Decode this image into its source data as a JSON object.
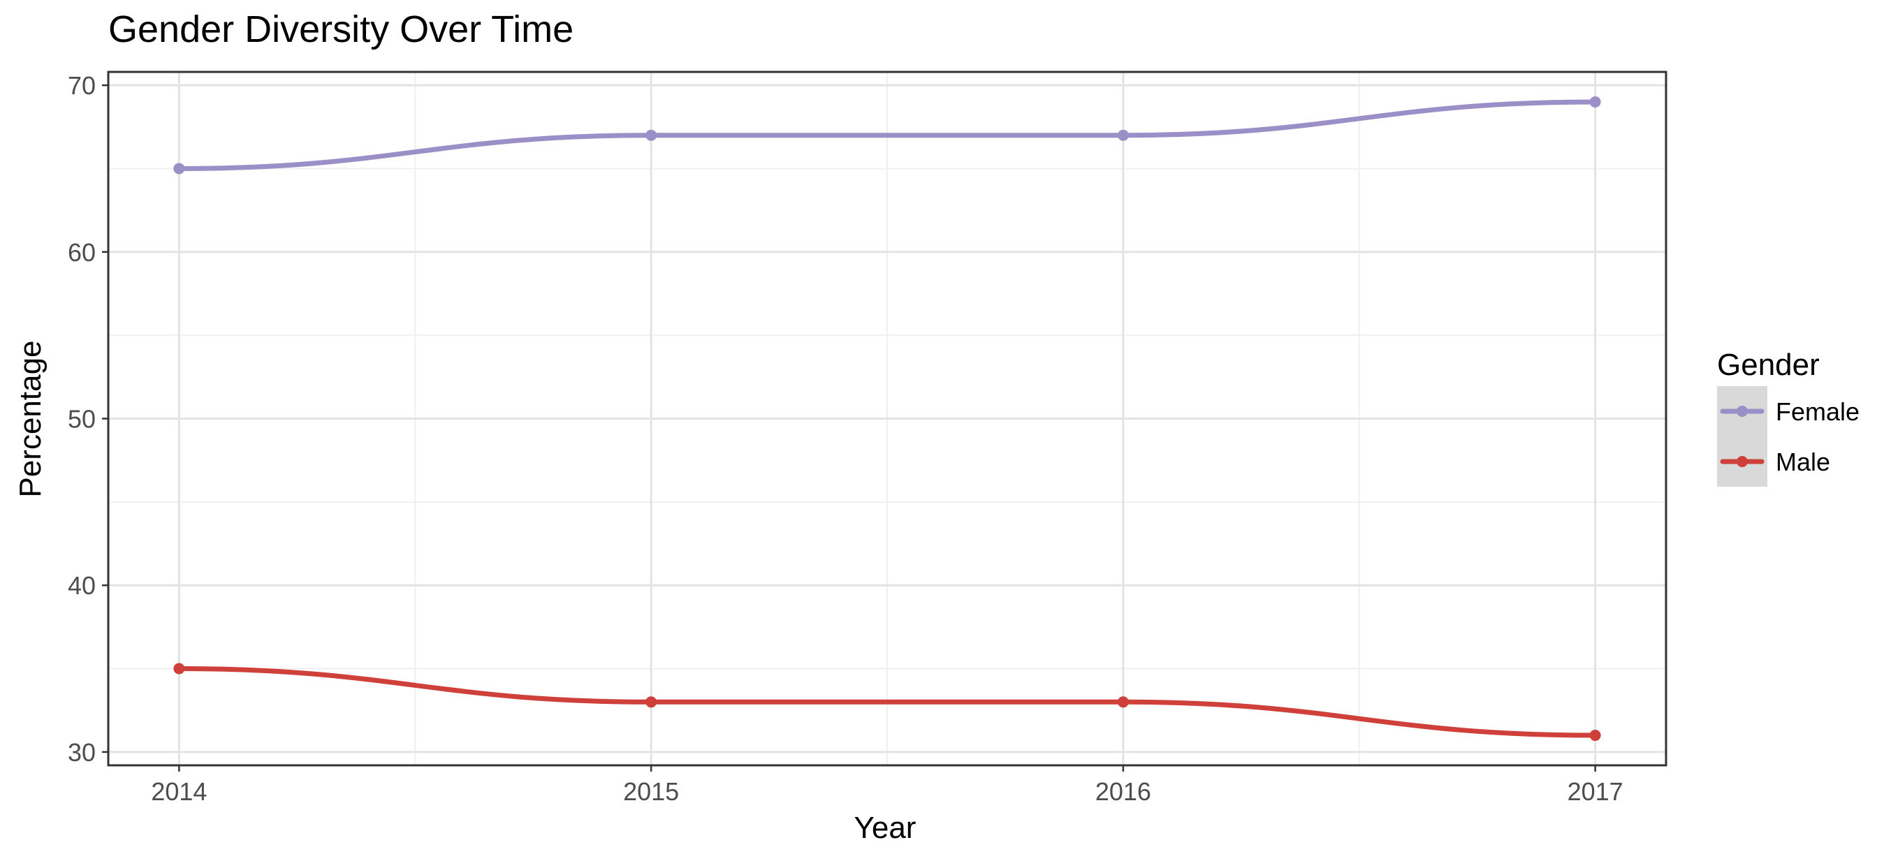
{
  "chart_data": {
    "type": "line",
    "title": "Gender Diversity Over Time",
    "xlabel": "Year",
    "ylabel": "Percentage",
    "x": [
      2014,
      2015,
      2016,
      2017
    ],
    "x_ticks": [
      "2014",
      "2015",
      "2016",
      "2017"
    ],
    "xlim": [
      2013.85,
      2017.15
    ],
    "ylim": [
      29.2,
      70.8
    ],
    "y_ticks": [
      30,
      40,
      50,
      60,
      70
    ],
    "grid": true,
    "smoothed": true,
    "legend": {
      "title": "Gender",
      "position": "right"
    },
    "series": [
      {
        "name": "Female",
        "color": "#9a8fc6",
        "values": [
          65,
          67,
          67,
          69
        ]
      },
      {
        "name": "Male",
        "color": "#d0403a",
        "values": [
          35,
          33,
          33,
          31
        ]
      }
    ]
  }
}
